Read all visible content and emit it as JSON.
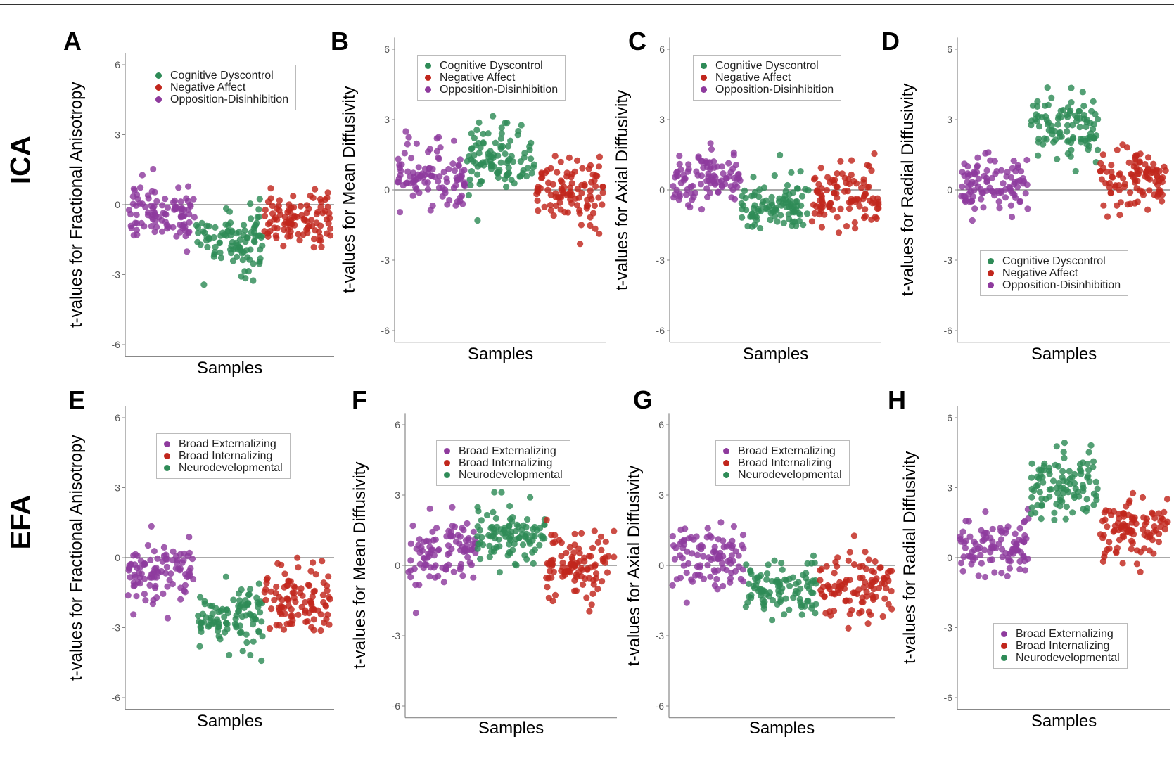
{
  "row_labels": {
    "top": "ICA",
    "bottom": "EFA"
  },
  "colors": {
    "purple": "#8e3a9d",
    "green": "#2e8b57",
    "red": "#c1261c"
  },
  "chart_data": [
    {
      "letter": "A",
      "type": "scatter",
      "ylabel": "t-values for Fractional Anisotropy",
      "xlabel": "Samples",
      "ylim": [
        -6.5,
        6.5
      ],
      "yticks": [
        "-6",
        "-3",
        "0",
        "3",
        "6"
      ],
      "legend_position": "top-center",
      "legend": [
        "Cognitive Dyscontrol",
        "Negative Affect",
        "Opposition-Disinhibition"
      ],
      "series": [
        {
          "name": "Opposition-Disinhibition",
          "color": "#8e3a9d",
          "order": 0,
          "center": -0.4,
          "spread": 0.75
        },
        {
          "name": "Cognitive Dyscontrol",
          "color": "#2e8b57",
          "order": 1,
          "center": -1.5,
          "spread": 0.8
        },
        {
          "name": "Negative Affect",
          "color": "#c1261c",
          "order": 2,
          "center": -0.6,
          "spread": 0.75
        }
      ]
    },
    {
      "letter": "B",
      "type": "scatter",
      "ylabel": "t-values for Mean Diffusivity",
      "xlabel": "Samples",
      "ylim": [
        -6.5,
        6.5
      ],
      "yticks": [
        "-6",
        "-3",
        "0",
        "3",
        "6"
      ],
      "legend_position": "top-center",
      "legend": [
        "Cognitive Dyscontrol",
        "Negative Affect",
        "Opposition-Disinhibition"
      ],
      "series": [
        {
          "name": "Opposition-Disinhibition",
          "color": "#8e3a9d",
          "order": 0,
          "center": 0.4,
          "spread": 0.8
        },
        {
          "name": "Cognitive Dyscontrol",
          "color": "#2e8b57",
          "order": 1,
          "center": 1.4,
          "spread": 0.9
        },
        {
          "name": "Negative Affect",
          "color": "#c1261c",
          "order": 2,
          "center": 0.0,
          "spread": 0.85
        }
      ]
    },
    {
      "letter": "C",
      "type": "scatter",
      "ylabel": "t-values for Axial Diffusivity",
      "xlabel": "Samples",
      "ylim": [
        -6.5,
        6.5
      ],
      "yticks": [
        "-6",
        "-3",
        "0",
        "3",
        "6"
      ],
      "legend_position": "top-center",
      "legend": [
        "Cognitive Dyscontrol",
        "Negative Affect",
        "Opposition-Disinhibition"
      ],
      "series": [
        {
          "name": "Opposition-Disinhibition",
          "color": "#8e3a9d",
          "order": 0,
          "center": 0.4,
          "spread": 0.75
        },
        {
          "name": "Cognitive Dyscontrol",
          "color": "#2e8b57",
          "order": 1,
          "center": -0.7,
          "spread": 0.7
        },
        {
          "name": "Negative Affect",
          "color": "#c1261c",
          "order": 2,
          "center": -0.3,
          "spread": 0.8
        }
      ]
    },
    {
      "letter": "D",
      "type": "scatter",
      "ylabel": "t-values for Radial Diffusivity",
      "xlabel": "Samples",
      "ylim": [
        -6.5,
        6.5
      ],
      "yticks": [
        "-6",
        "-3",
        "0",
        "3",
        "6"
      ],
      "legend_position": "bottom-center",
      "legend": [
        "Cognitive Dyscontrol",
        "Negative Affect",
        "Opposition-Disinhibition"
      ],
      "series": [
        {
          "name": "Opposition-Disinhibition",
          "color": "#8e3a9d",
          "order": 0,
          "center": 0.2,
          "spread": 0.75
        },
        {
          "name": "Cognitive Dyscontrol",
          "color": "#2e8b57",
          "order": 1,
          "center": 2.7,
          "spread": 0.85
        },
        {
          "name": "Negative Affect",
          "color": "#c1261c",
          "order": 2,
          "center": 0.4,
          "spread": 0.8
        }
      ]
    },
    {
      "letter": "E",
      "type": "scatter",
      "ylabel": "t-values for Fractional Anisotropy",
      "xlabel": "Samples",
      "ylim": [
        -6.5,
        6.5
      ],
      "yticks": [
        "-6",
        "-3",
        "0",
        "3",
        "6"
      ],
      "legend_position": "top-center",
      "legend": [
        "Broad Externalizing",
        "Broad Internalizing",
        "Neurodevelopmental"
      ],
      "series": [
        {
          "name": "Broad Externalizing",
          "color": "#8e3a9d",
          "order": 0,
          "center": -0.6,
          "spread": 0.75
        },
        {
          "name": "Neurodevelopmental",
          "color": "#2e8b57",
          "order": 1,
          "center": -2.6,
          "spread": 0.8
        },
        {
          "name": "Broad Internalizing",
          "color": "#c1261c",
          "order": 2,
          "center": -1.8,
          "spread": 0.8
        }
      ]
    },
    {
      "letter": "F",
      "type": "scatter",
      "ylabel": "t-values for Mean Diffusivity",
      "xlabel": "Samples",
      "ylim": [
        -6.5,
        6.5
      ],
      "yticks": [
        "-6",
        "-3",
        "0",
        "3",
        "6"
      ],
      "legend_position": "top-center",
      "legend": [
        "Broad Externalizing",
        "Broad Internalizing",
        "Neurodevelopmental"
      ],
      "series": [
        {
          "name": "Broad Externalizing",
          "color": "#8e3a9d",
          "order": 0,
          "center": 0.4,
          "spread": 0.85
        },
        {
          "name": "Neurodevelopmental",
          "color": "#2e8b57",
          "order": 1,
          "center": 1.3,
          "spread": 0.75
        },
        {
          "name": "Broad Internalizing",
          "color": "#c1261c",
          "order": 2,
          "center": 0.0,
          "spread": 0.85
        }
      ]
    },
    {
      "letter": "G",
      "type": "scatter",
      "ylabel": "t-values for Axial Diffusivity",
      "xlabel": "Samples",
      "ylim": [
        -6.5,
        6.5
      ],
      "yticks": [
        "-6",
        "-3",
        "0",
        "3",
        "6"
      ],
      "legend_position": "top-center",
      "legend": [
        "Broad Externalizing",
        "Broad Internalizing",
        "Neurodevelopmental"
      ],
      "series": [
        {
          "name": "Broad Externalizing",
          "color": "#8e3a9d",
          "order": 0,
          "center": 0.3,
          "spread": 0.8
        },
        {
          "name": "Neurodevelopmental",
          "color": "#2e8b57",
          "order": 1,
          "center": -1.0,
          "spread": 0.7
        },
        {
          "name": "Broad Internalizing",
          "color": "#c1261c",
          "order": 2,
          "center": -0.9,
          "spread": 0.8
        }
      ]
    },
    {
      "letter": "H",
      "type": "scatter",
      "ylabel": "t-values for Radial Diffusivity",
      "xlabel": "Samples",
      "ylim": [
        -6.5,
        6.5
      ],
      "yticks": [
        "-6",
        "-3",
        "0",
        "3",
        "6"
      ],
      "legend_position": "bottom-center",
      "legend": [
        "Broad Externalizing",
        "Broad Internalizing",
        "Neurodevelopmental"
      ],
      "series": [
        {
          "name": "Broad Externalizing",
          "color": "#8e3a9d",
          "order": 0,
          "center": 0.4,
          "spread": 0.75
        },
        {
          "name": "Neurodevelopmental",
          "color": "#2e8b57",
          "order": 1,
          "center": 3.1,
          "spread": 0.85
        },
        {
          "name": "Broad Internalizing",
          "color": "#c1261c",
          "order": 2,
          "center": 1.3,
          "spread": 0.8
        }
      ]
    }
  ]
}
